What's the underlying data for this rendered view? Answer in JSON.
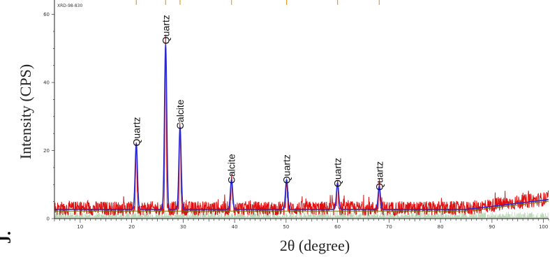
{
  "chart_data": {
    "type": "line",
    "reference_id": "XRD-98-830",
    "ylabel": "Intensity (CPS)",
    "xlabel": "2θ (degree)",
    "panel_letter": "J.",
    "xlim": [
      5,
      101
    ],
    "ylim": [
      0,
      63
    ],
    "x_ticks": [
      10,
      20,
      30,
      40,
      50,
      60,
      70,
      80,
      90,
      100
    ],
    "y_ticks": [
      0,
      20,
      40,
      60
    ],
    "grid": false,
    "colors": {
      "observed": "#e01010",
      "calculated": "#2a2ad0",
      "background_line": "#707000",
      "phase_fill": "#a6c9a0",
      "reference_marker": "#e0a030"
    },
    "reference_markers": [
      20.9,
      26.6,
      29.4,
      39.4,
      50.1,
      60.0,
      68.1
    ],
    "background_level": 3,
    "peaks": [
      {
        "x": 20.9,
        "y": 20,
        "label": "Quartz"
      },
      {
        "x": 26.6,
        "y": 50,
        "label": "Quartz"
      },
      {
        "x": 29.4,
        "y": 25,
        "label": "Calcite"
      },
      {
        "x": 39.4,
        "y": 9,
        "label": "Calcite"
      },
      {
        "x": 50.1,
        "y": 9,
        "label": "Quartz"
      },
      {
        "x": 60.0,
        "y": 8,
        "label": "Quartz"
      },
      {
        "x": 68.1,
        "y": 7,
        "label": "Quartz"
      }
    ]
  }
}
